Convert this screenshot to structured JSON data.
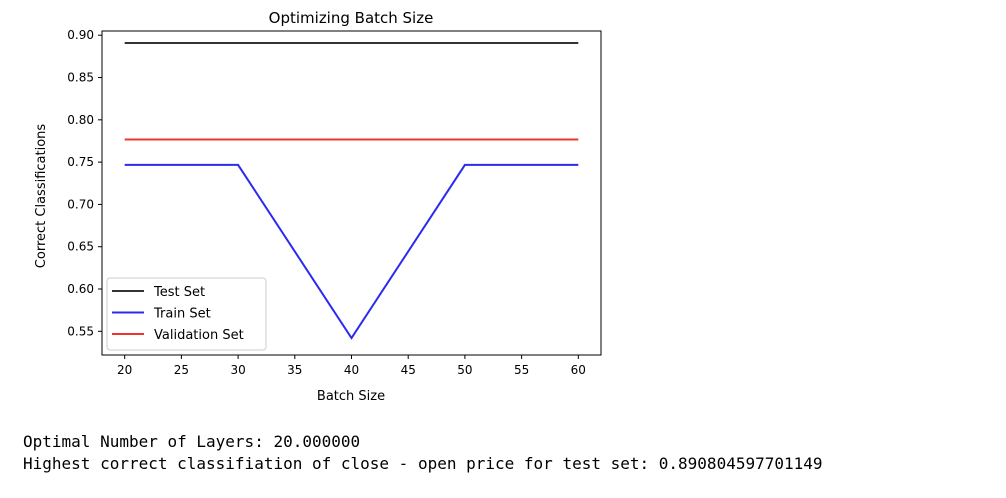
{
  "chart_data": {
    "type": "line",
    "title": "Optimizing Batch Size",
    "xlabel": "Batch Size",
    "ylabel": "Correct Classifications",
    "x": [
      20,
      30,
      40,
      50,
      60
    ],
    "xlim": [
      18,
      62
    ],
    "ylim": [
      0.522,
      0.905
    ],
    "xticks": [
      "20",
      "25",
      "30",
      "35",
      "40",
      "45",
      "50",
      "55",
      "60"
    ],
    "yticks": [
      "0.55",
      "0.60",
      "0.65",
      "0.70",
      "0.75",
      "0.80",
      "0.85",
      "0.90"
    ],
    "grid": false,
    "legend_position": "lower-left",
    "series": [
      {
        "name": "Test Set",
        "color": "#333333",
        "values": [
          0.8908,
          0.8908,
          0.8908,
          0.8908,
          0.8908
        ]
      },
      {
        "name": "Train Set",
        "color": "#2b2bef",
        "values": [
          0.7467,
          0.7467,
          0.5421,
          0.7467,
          0.7467
        ]
      },
      {
        "name": "Validation Set",
        "color": "#ef3434",
        "values": [
          0.7767,
          0.7767,
          0.7767,
          0.7767,
          0.7767
        ]
      }
    ]
  },
  "output": {
    "line1": "Optimal Number of Layers: 20.000000",
    "line2": "Highest correct classifiation of close - open price for test set: 0.890804597701149"
  }
}
